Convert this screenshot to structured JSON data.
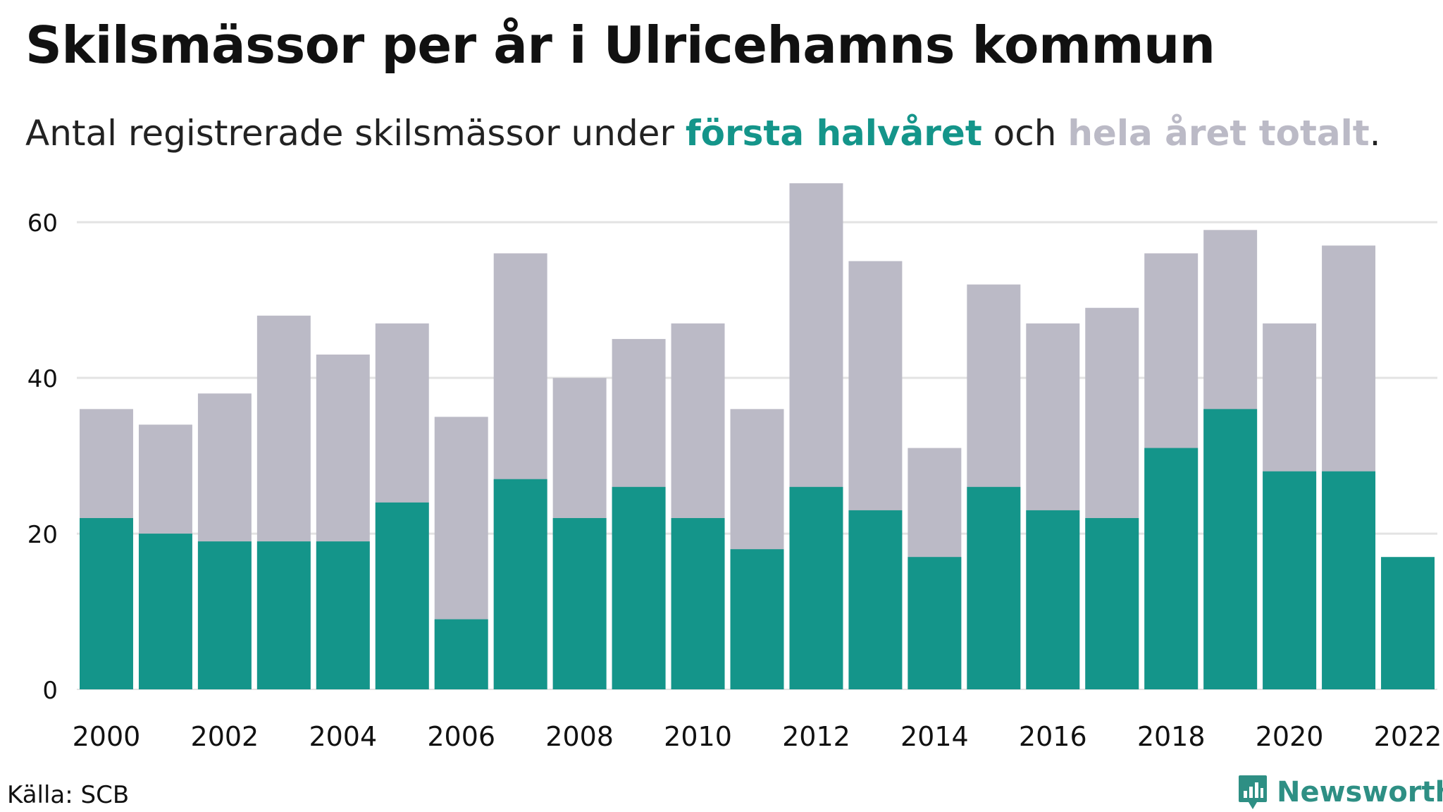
{
  "header": {
    "title": "Skilsmässor per år i Ulricehamns kommun",
    "subtitle_prefix": "Antal registrerade skilsmässor under ",
    "subtitle_highlight_half": "första halvåret",
    "subtitle_mid": " och ",
    "subtitle_highlight_total": "hela året totalt",
    "subtitle_suffix": "."
  },
  "colors": {
    "first_half": "#14958a",
    "full_year": "#bbbac6",
    "grid": "#e3e3e3",
    "brand": "#2e8f84"
  },
  "footer": {
    "source": "Källa: SCB",
    "brand": "Newsworthy"
  },
  "chart_data": {
    "type": "bar",
    "title": "Skilsmässor per år i Ulricehamns kommun",
    "subtitle": "Antal registrerade skilsmässor under första halvåret och hela året totalt.",
    "xlabel": "",
    "ylabel": "",
    "categories": [
      "2000",
      "2001",
      "2002",
      "2003",
      "2004",
      "2005",
      "2006",
      "2007",
      "2008",
      "2009",
      "2010",
      "2011",
      "2012",
      "2013",
      "2014",
      "2015",
      "2016",
      "2017",
      "2018",
      "2019",
      "2020",
      "2021",
      "2022"
    ],
    "x_tick_labels": [
      "2000",
      "2002",
      "2004",
      "2006",
      "2008",
      "2010",
      "2012",
      "2014",
      "2016",
      "2018",
      "2020",
      "2022"
    ],
    "series": [
      {
        "values": [
          36,
          34,
          38,
          48,
          43,
          47,
          35,
          56,
          40,
          45,
          47,
          36,
          65,
          55,
          31,
          52,
          47,
          49,
          56,
          59,
          47,
          57,
          null
        ]
      },
      {
        "values": [
          22,
          20,
          19,
          19,
          19,
          24,
          9,
          27,
          22,
          26,
          22,
          18,
          26,
          23,
          17,
          26,
          23,
          22,
          31,
          36,
          28,
          28,
          17
        ]
      }
    ],
    "ylim": [
      0,
      65
    ],
    "yticks": [
      0,
      20,
      40,
      60
    ],
    "grid": true,
    "overlay": true
  }
}
